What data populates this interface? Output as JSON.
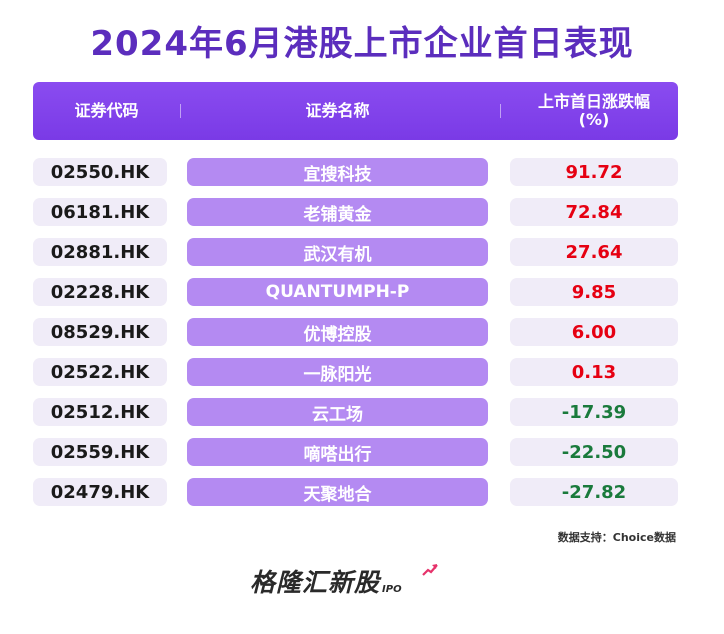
{
  "title": "2024年6月港股上市企业首日表现",
  "headers": {
    "code": "证券代码",
    "name": "证券名称",
    "change": "上市首日涨跌幅\n(%)"
  },
  "chart_data": {
    "type": "table",
    "columns": [
      "证券代码",
      "证券名称",
      "上市首日涨跌幅(%)"
    ],
    "rows": [
      {
        "code": "02550.HK",
        "name": "宜搜科技",
        "change": "91.72",
        "value": 91.72
      },
      {
        "code": "06181.HK",
        "name": "老铺黄金",
        "change": "72.84",
        "value": 72.84
      },
      {
        "code": "02881.HK",
        "name": "武汉有机",
        "change": "27.64",
        "value": 27.64
      },
      {
        "code": "02228.HK",
        "name": "QUANTUMPH-P",
        "change": "9.85",
        "value": 9.85
      },
      {
        "code": "08529.HK",
        "name": "优博控股",
        "change": "6.00",
        "value": 6.0
      },
      {
        "code": "02522.HK",
        "name": "一脉阳光",
        "change": "0.13",
        "value": 0.13
      },
      {
        "code": "02512.HK",
        "name": "云工场",
        "change": "-17.39",
        "value": -17.39
      },
      {
        "code": "02559.HK",
        "name": "嘀嗒出行",
        "change": "-22.50",
        "value": -22.5
      },
      {
        "code": "02479.HK",
        "name": "天聚地合",
        "change": "-27.82",
        "value": -27.82
      }
    ]
  },
  "colors": {
    "positive": "#e60012",
    "negative": "#1a7a3c"
  },
  "source": "数据支持：Choice数据",
  "logo": {
    "main": "格隆汇新股",
    "sub": "IPO"
  }
}
